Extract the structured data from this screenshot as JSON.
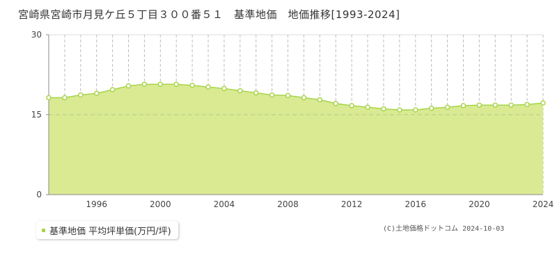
{
  "chart_data": {
    "type": "area",
    "title": "宮崎県宮崎市月見ケ丘５丁目３００番５１　基準地価　地価推移[1993-2024]",
    "xlabel": "",
    "ylabel": "",
    "xlim": [
      1993,
      2024
    ],
    "ylim": [
      0,
      30
    ],
    "yticks": [
      0,
      15,
      30
    ],
    "xticks": [
      1996,
      2000,
      2004,
      2008,
      2012,
      2016,
      2020,
      2024
    ],
    "grid": true,
    "legend_position": "bottom-left",
    "series": [
      {
        "name": "基準地価 平均坪単価(万円/坪)",
        "color": "#a8d44a",
        "fill": "#d9ea93",
        "x": [
          1993,
          1994,
          1995,
          1996,
          1997,
          1998,
          1999,
          2000,
          2001,
          2002,
          2003,
          2004,
          2005,
          2006,
          2007,
          2008,
          2009,
          2010,
          2011,
          2012,
          2013,
          2014,
          2015,
          2016,
          2017,
          2018,
          2019,
          2020,
          2021,
          2022,
          2023,
          2024
        ],
        "values": [
          18.2,
          18.2,
          18.7,
          19.0,
          19.7,
          20.4,
          20.7,
          20.7,
          20.7,
          20.5,
          20.2,
          19.9,
          19.5,
          19.1,
          18.7,
          18.6,
          18.2,
          17.8,
          17.1,
          16.7,
          16.4,
          16.1,
          15.9,
          15.9,
          16.2,
          16.4,
          16.7,
          16.8,
          16.8,
          16.8,
          16.9,
          17.2
        ]
      }
    ]
  },
  "legend": {
    "label": "基準地価 平均坪単価(万円/坪)"
  },
  "credit": "(C)土地価格ドットコム 2024-10-03"
}
